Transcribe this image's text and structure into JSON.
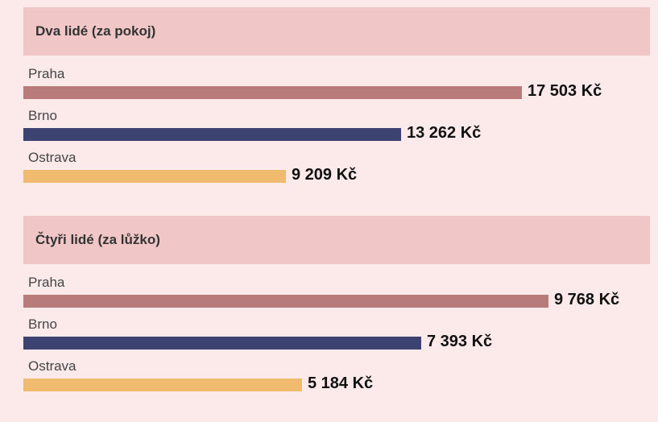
{
  "chart_data": [
    {
      "type": "bar",
      "orientation": "horizontal",
      "title": "Dva lidé (za pokoj)",
      "xlim": [
        0,
        22000
      ],
      "categories": [
        "Praha",
        "Brno",
        "Ostrava"
      ],
      "values": [
        17503,
        13262,
        9209
      ],
      "value_labels": [
        "17 503 Kč",
        "13 262 Kč",
        "9 209 Kč"
      ],
      "colors": [
        "#b97a7a",
        "#3d4370",
        "#f0bb6e"
      ]
    },
    {
      "type": "bar",
      "orientation": "horizontal",
      "title": "Čtyři lidé (za lůžko)",
      "xlim": [
        0,
        11650
      ],
      "categories": [
        "Praha",
        "Brno",
        "Ostrava"
      ],
      "values": [
        9768,
        7393,
        5184
      ],
      "value_labels": [
        "9 768 Kč",
        "7 393 Kč",
        "5 184 Kč"
      ],
      "colors": [
        "#b97a7a",
        "#3d4370",
        "#f0bb6e"
      ]
    }
  ]
}
